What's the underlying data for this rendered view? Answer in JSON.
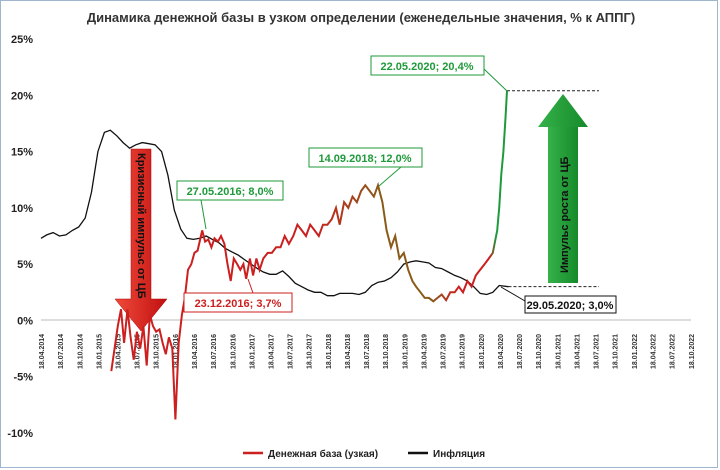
{
  "chart_data": {
    "type": "line",
    "title": "Динамика денежной базы в узком определении (еженедельные значения, % к АППГ)",
    "ylim": [
      -10,
      25
    ],
    "yticks": [
      "25%",
      "20%",
      "15%",
      "10%",
      "5%",
      "0%",
      "-5%",
      "-10%"
    ],
    "ytick_values": [
      25,
      20,
      15,
      10,
      5,
      0,
      -5,
      -10
    ],
    "xlim": [
      "2014-04-18",
      "2022-10-18"
    ],
    "xticks": [
      "18.04.2014",
      "18.07.2014",
      "18.10.2014",
      "18.01.2015",
      "18.04.2015",
      "18.07.2015",
      "18.10.2015",
      "18.01.2016",
      "18.04.2016",
      "18.07.2016",
      "18.10.2016",
      "18.01.2017",
      "18.04.2017",
      "18.07.2017",
      "18.10.2017",
      "18.01.2018",
      "18.04.2018",
      "18.07.2018",
      "18.10.2018",
      "18.01.2019",
      "18.04.2019",
      "18.07.2019",
      "18.10.2019",
      "18.01.2020",
      "18.04.2020",
      "18.07.2020",
      "18.10.2020",
      "18.01.2021",
      "18.04.2021",
      "18.07.2021",
      "18.10.2021",
      "18.01.2022",
      "18.04.2022",
      "18.07.2022",
      "18.10.2022"
    ],
    "xtick_dates": [
      "2014-04-18",
      "2014-07-18",
      "2014-10-18",
      "2015-01-18",
      "2015-04-18",
      "2015-07-18",
      "2015-10-18",
      "2016-01-18",
      "2016-04-18",
      "2016-07-18",
      "2016-10-18",
      "2017-01-18",
      "2017-04-18",
      "2017-07-18",
      "2017-10-18",
      "2018-01-18",
      "2018-04-18",
      "2018-07-18",
      "2018-10-18",
      "2019-01-18",
      "2019-04-18",
      "2019-07-18",
      "2019-10-18",
      "2020-01-18",
      "2020-04-18",
      "2020-07-18",
      "2020-10-18",
      "2021-01-18",
      "2021-04-18",
      "2021-07-18",
      "2021-10-18",
      "2022-01-18",
      "2022-04-18",
      "2022-07-18",
      "2022-10-18"
    ],
    "series": [
      {
        "name": "Денежная база (узкая)",
        "color": "#cc1f1f",
        "x": [
          "2015-03-20",
          "2015-04-20",
          "2015-05-05",
          "2015-05-20",
          "2015-06-05",
          "2015-06-20",
          "2015-07-05",
          "2015-07-20",
          "2015-08-05",
          "2015-08-20",
          "2015-09-05",
          "2015-09-20",
          "2015-10-05",
          "2015-10-20",
          "2015-11-05",
          "2015-11-20",
          "2015-12-05",
          "2015-12-20",
          "2016-01-05",
          "2016-01-20",
          "2016-02-05",
          "2016-02-20",
          "2016-03-05",
          "2016-03-20",
          "2016-04-05",
          "2016-04-20",
          "2016-05-05",
          "2016-05-27",
          "2016-06-10",
          "2016-06-25",
          "2016-07-10",
          "2016-07-25",
          "2016-08-10",
          "2016-08-25",
          "2016-09-10",
          "2016-09-25",
          "2016-10-10",
          "2016-10-25",
          "2016-11-10",
          "2016-11-25",
          "2016-12-10",
          "2016-12-23",
          "2017-01-10",
          "2017-01-25",
          "2017-02-10",
          "2017-02-25",
          "2017-03-15",
          "2017-04-05",
          "2017-04-25",
          "2017-05-15",
          "2017-06-05",
          "2017-06-25",
          "2017-07-15",
          "2017-08-05",
          "2017-08-25",
          "2017-09-15",
          "2017-10-05",
          "2017-10-25",
          "2017-11-15",
          "2017-12-05",
          "2017-12-25",
          "2018-01-15",
          "2018-02-05",
          "2018-02-25",
          "2018-03-15",
          "2018-04-05",
          "2018-04-25",
          "2018-05-15",
          "2018-06-05",
          "2018-06-25",
          "2018-07-15",
          "2018-08-05",
          "2018-08-25",
          "2018-09-14",
          "2018-10-05",
          "2018-10-25",
          "2018-11-15",
          "2018-12-05",
          "2018-12-25",
          "2019-01-15",
          "2019-02-05",
          "2019-02-25",
          "2019-03-15",
          "2019-04-05",
          "2019-04-25",
          "2019-05-15",
          "2019-06-05",
          "2019-06-25",
          "2019-07-15",
          "2019-08-05",
          "2019-08-25",
          "2019-09-15",
          "2019-10-05",
          "2019-10-25",
          "2019-11-15",
          "2019-12-05",
          "2019-12-25",
          "2020-01-15",
          "2020-02-05",
          "2020-02-25",
          "2020-03-15",
          "2020-04-05",
          "2020-04-15",
          "2020-04-25",
          "2020-05-05",
          "2020-05-15",
          "2020-05-22"
        ],
        "y": [
          -4.5,
          -0.5,
          1.0,
          -2.0,
          1.0,
          -1.5,
          -3.5,
          -1.0,
          -2.5,
          -0.5,
          -4.0,
          0.5,
          -0.5,
          -1.0,
          -0.8,
          -2.0,
          -3.0,
          -1.5,
          -2.5,
          -8.8,
          -2.0,
          0.5,
          2.0,
          4.5,
          5.0,
          6.0,
          6.2,
          8.0,
          7.0,
          7.2,
          6.5,
          7.3,
          7.0,
          7.5,
          6.8,
          5.0,
          3.5,
          5.5,
          5.0,
          4.5,
          5.0,
          3.7,
          5.5,
          4.0,
          5.5,
          4.5,
          5.5,
          6.0,
          6.0,
          6.5,
          6.5,
          7.5,
          6.8,
          7.5,
          8.5,
          8.0,
          7.5,
          8.5,
          8.0,
          7.5,
          8.5,
          8.5,
          9.0,
          10.0,
          8.5,
          10.5,
          10.0,
          11.0,
          10.5,
          11.5,
          12.0,
          11.5,
          11.0,
          12.0,
          10.5,
          8.0,
          6.5,
          7.5,
          5.5,
          6.0,
          4.5,
          3.5,
          3.0,
          2.5,
          2.0,
          2.0,
          1.7,
          2.0,
          2.3,
          1.8,
          2.5,
          2.5,
          3.0,
          2.5,
          3.5,
          3.0,
          4.0,
          4.5,
          5.0,
          5.5,
          6.0,
          8.0,
          10.0,
          13.0,
          15.0,
          18.0,
          20.4
        ]
      },
      {
        "name": "Инфляция",
        "color": "#111111",
        "x": [
          "2014-04-18",
          "2014-05-15",
          "2014-06-15",
          "2014-07-15",
          "2014-08-15",
          "2014-09-15",
          "2014-10-15",
          "2014-11-15",
          "2014-12-15",
          "2015-01-15",
          "2015-02-15",
          "2015-03-15",
          "2015-04-15",
          "2015-05-15",
          "2015-06-15",
          "2015-07-15",
          "2015-08-15",
          "2015-09-15",
          "2015-10-15",
          "2015-11-15",
          "2015-12-15",
          "2016-01-15",
          "2016-02-15",
          "2016-03-15",
          "2016-04-15",
          "2016-05-15",
          "2016-06-15",
          "2016-07-15",
          "2016-08-15",
          "2016-09-15",
          "2016-10-15",
          "2016-11-15",
          "2016-12-15",
          "2017-01-15",
          "2017-02-15",
          "2017-03-15",
          "2017-04-15",
          "2017-05-15",
          "2017-06-15",
          "2017-07-15",
          "2017-08-15",
          "2017-09-15",
          "2017-10-15",
          "2017-11-15",
          "2017-12-15",
          "2018-01-15",
          "2018-02-15",
          "2018-03-15",
          "2018-04-15",
          "2018-05-15",
          "2018-06-15",
          "2018-07-15",
          "2018-08-15",
          "2018-09-15",
          "2018-10-15",
          "2018-11-15",
          "2018-12-15",
          "2019-01-15",
          "2019-02-15",
          "2019-03-15",
          "2019-04-15",
          "2019-05-15",
          "2019-06-15",
          "2019-07-15",
          "2019-08-15",
          "2019-09-15",
          "2019-10-15",
          "2019-11-15",
          "2019-12-15",
          "2020-01-15",
          "2020-02-15",
          "2020-03-15",
          "2020-04-15",
          "2020-05-29"
        ],
        "y": [
          7.3,
          7.6,
          7.8,
          7.5,
          7.6,
          8.0,
          8.3,
          9.1,
          11.4,
          15.0,
          16.7,
          16.9,
          16.4,
          15.8,
          15.3,
          15.6,
          15.8,
          15.7,
          15.6,
          15.0,
          12.9,
          9.8,
          8.1,
          7.3,
          7.2,
          7.3,
          7.5,
          7.2,
          6.9,
          6.4,
          6.1,
          5.8,
          5.4,
          5.0,
          4.6,
          4.3,
          4.1,
          4.1,
          4.4,
          3.9,
          3.3,
          3.0,
          2.7,
          2.5,
          2.5,
          2.2,
          2.2,
          2.4,
          2.4,
          2.4,
          2.3,
          2.5,
          3.1,
          3.4,
          3.5,
          3.8,
          4.3,
          5.0,
          5.2,
          5.3,
          5.2,
          5.1,
          4.7,
          4.6,
          4.3,
          4.0,
          3.8,
          3.5,
          3.0,
          2.4,
          2.3,
          2.5,
          3.1,
          3.0
        ]
      }
    ],
    "annotations": {
      "peak_green": "22.05.2020; 20,4%",
      "a2018": "14.09.2018; 12,0%",
      "a2016": "27.05.2016; 8,0%",
      "low2016": "23.12.2016; 3,7%",
      "infl2020": "29.05.2020; 3,0%",
      "crisis_arrow": "Кризисный импульс от ЦБ",
      "growth_arrow": "Импульс роста от ЦБ"
    },
    "legend": {
      "position": "bottom",
      "items": [
        "Денежная база (узкая)",
        "Инфляция"
      ]
    },
    "grid": false,
    "colors": {
      "money_base": "#cc1f1f",
      "money_base_2018": "#8a5a18",
      "money_base_2020": "#1f9a3a",
      "inflation": "#111111",
      "crisis_arrow": "#e8281c",
      "growth_arrow": "#1f9a3a",
      "green_text": "#1f9a3a",
      "red_text": "#cc1f1f"
    }
  }
}
